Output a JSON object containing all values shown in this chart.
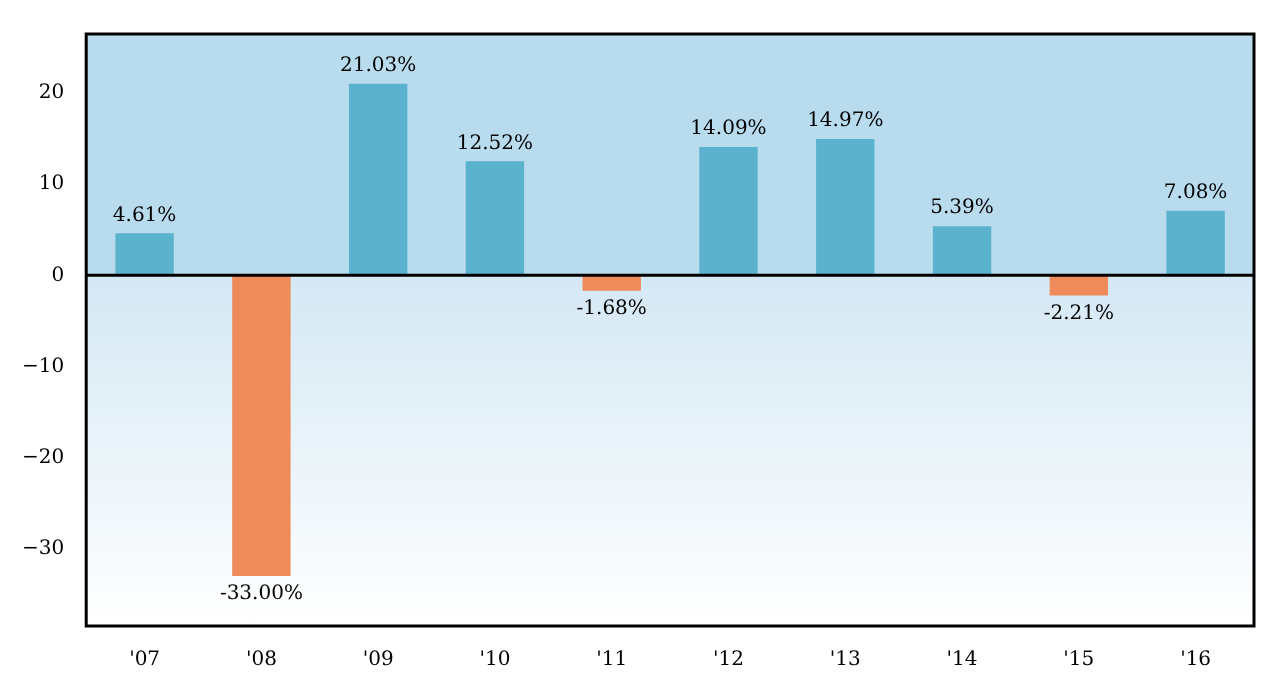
{
  "chart_data": {
    "type": "bar",
    "categories": [
      "'07",
      "'08",
      "'09",
      "'10",
      "'11",
      "'12",
      "'13",
      "'14",
      "'15",
      "'16"
    ],
    "values": [
      4.61,
      -33.0,
      21.03,
      12.52,
      -1.68,
      14.09,
      14.97,
      5.39,
      -2.21,
      7.08
    ],
    "colors": [
      "#5ab2cc",
      "#ef8a5a",
      "#5ab2cc",
      "#5ab2cc",
      "#ef8a5a",
      "#5ab2cc",
      "#5ab2cc",
      "#5ab2cc",
      "#ef8a5a",
      "#5ab2cc"
    ],
    "value_labels": [
      "4.61%",
      "-33.00%",
      "21.03%",
      "12.52%",
      "-1.68%",
      "14.09%",
      "14.97%",
      "5.39%",
      "-2.21%",
      "7.08%"
    ],
    "ylim": [
      -38.5,
      26.5
    ],
    "yticks": [
      {
        "value": -30,
        "label": "−30"
      },
      {
        "value": -20,
        "label": "−20"
      },
      {
        "value": -10,
        "label": "−10"
      },
      0,
      10,
      20
    ],
    "ref_lines": [
      {
        "axis": "y",
        "value": 0,
        "color": "#000000"
      }
    ],
    "grid": false,
    "legend": false
  }
}
